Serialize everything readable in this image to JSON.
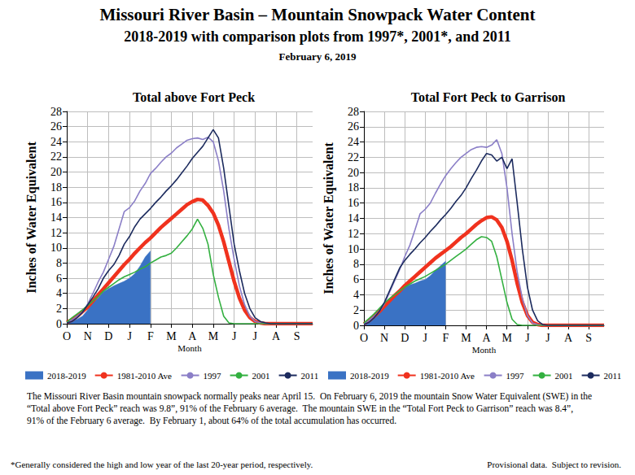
{
  "header": {
    "title": "Missouri River Basin – Mountain Snowpack Water Content",
    "subtitle": "2018-2019 with comparison plots from 1997*, 2001*, and 2011",
    "date": "February 6, 2019"
  },
  "chart_data": [
    {
      "type": "line",
      "title": "Total above Fort Peck",
      "x_label": "Month",
      "y_label": "Inches of Water Equivalent",
      "categories": [
        "O",
        null,
        null,
        null,
        "N",
        null,
        null,
        null,
        "D",
        null,
        null,
        null,
        "J",
        null,
        null,
        null,
        "F",
        null,
        null,
        null,
        "M",
        null,
        null,
        null,
        "A",
        null,
        null,
        null,
        "M",
        null,
        null,
        null,
        "J",
        null,
        null,
        null,
        "J",
        null,
        null,
        null,
        "A",
        null,
        null,
        null,
        "S",
        null,
        null,
        null
      ],
      "ylim": [
        0,
        28
      ],
      "yticks": [
        0,
        2,
        4,
        6,
        8,
        10,
        12,
        14,
        16,
        18,
        20,
        22,
        24,
        26,
        28
      ],
      "grid": true,
      "legend": "bottom",
      "series": [
        {
          "name": "2018-2019",
          "type": "area",
          "color": "#3a72c4",
          "values": [
            0.2,
            0.4,
            0.6,
            1.0,
            1.8,
            2.8,
            3.4,
            4.2,
            4.6,
            5.0,
            5.3,
            5.6,
            6.0,
            6.6,
            7.6,
            8.8,
            9.6,
            null,
            null,
            null,
            null,
            null,
            null,
            null,
            null,
            null,
            null,
            null,
            null,
            null,
            null,
            null,
            null,
            null,
            null,
            null,
            null,
            null,
            null,
            null,
            null,
            null,
            null,
            null,
            null,
            null,
            null,
            null
          ]
        },
        {
          "name": "1981-2010 Ave",
          "type": "line",
          "color": "#f0321e",
          "line_style": "thick",
          "values": [
            0.2,
            0.5,
            1.0,
            1.6,
            2.2,
            3.0,
            3.8,
            4.6,
            5.4,
            6.2,
            7.0,
            7.8,
            8.5,
            9.3,
            10.0,
            10.7,
            11.3,
            12.0,
            12.7,
            13.3,
            13.9,
            14.5,
            15.1,
            15.7,
            16.1,
            16.4,
            16.3,
            15.6,
            14.6,
            13.0,
            10.8,
            8.2,
            5.6,
            3.4,
            1.8,
            0.8,
            0.3,
            0.1,
            0,
            0,
            0,
            0,
            0,
            0,
            0,
            0,
            0,
            0
          ]
        },
        {
          "name": "1997",
          "type": "line",
          "color": "#8b7fc7",
          "line_style": "solid",
          "values": [
            0.2,
            0.5,
            1.0,
            1.5,
            2.6,
            4.0,
            5.5,
            6.8,
            8.5,
            10.2,
            12.5,
            14.8,
            15.3,
            16.2,
            17.5,
            18.5,
            19.8,
            20.5,
            21.3,
            22.0,
            22.5,
            23.2,
            23.7,
            24.2,
            24.4,
            24.5,
            24.3,
            24.6,
            24.0,
            21.5,
            17.5,
            12.5,
            8.5,
            5.0,
            2.5,
            1.0,
            0.3,
            0.1,
            0,
            0,
            0,
            0,
            0,
            0,
            0,
            0,
            0,
            0
          ]
        },
        {
          "name": "2001",
          "type": "line",
          "color": "#33b040",
          "line_style": "solid",
          "values": [
            0.2,
            0.8,
            1.3,
            1.8,
            2.4,
            3.0,
            3.6,
            4.3,
            4.8,
            5.3,
            5.8,
            6.2,
            6.5,
            6.8,
            7.2,
            7.5,
            8.0,
            8.4,
            8.8,
            9.0,
            9.3,
            10.0,
            10.8,
            11.6,
            12.5,
            13.8,
            12.6,
            10.5,
            6.5,
            3.5,
            1.0,
            0.1,
            0,
            0,
            0,
            0,
            0,
            0,
            0,
            0,
            0,
            0,
            0,
            0,
            0,
            0,
            0,
            0
          ]
        },
        {
          "name": "2011",
          "type": "line",
          "color": "#1c2b5e",
          "line_style": "solid",
          "values": [
            0.1,
            0.3,
            0.8,
            1.5,
            2.5,
            3.5,
            4.6,
            6.0,
            7.0,
            7.8,
            9.0,
            10.5,
            11.5,
            12.8,
            13.8,
            14.5,
            15.2,
            16.0,
            16.7,
            17.5,
            18.2,
            19.0,
            19.9,
            20.8,
            21.8,
            22.6,
            23.4,
            24.5,
            25.6,
            24.5,
            20.5,
            15.5,
            10.5,
            7.0,
            4.0,
            2.0,
            0.8,
            0.3,
            0.1,
            0,
            0,
            0,
            0,
            0,
            0,
            0,
            0,
            0
          ]
        }
      ]
    },
    {
      "type": "line",
      "title": "Total Fort Peck to Garrison",
      "x_label": "Month",
      "y_label": "Inches of Water Equivalent",
      "categories": [
        "O",
        null,
        null,
        null,
        "N",
        null,
        null,
        null,
        "D",
        null,
        null,
        null,
        "J",
        null,
        null,
        null,
        "F",
        null,
        null,
        null,
        "M",
        null,
        null,
        null,
        "A",
        null,
        null,
        null,
        "M",
        null,
        null,
        null,
        "J",
        null,
        null,
        null,
        "J",
        null,
        null,
        null,
        "A",
        null,
        null,
        null,
        "S",
        null,
        null,
        null
      ],
      "ylim": [
        0,
        28
      ],
      "yticks": [
        0,
        2,
        4,
        6,
        8,
        10,
        12,
        14,
        16,
        18,
        20,
        22,
        24,
        26,
        28
      ],
      "grid": true,
      "legend": "bottom",
      "series": [
        {
          "name": "2018-2019",
          "type": "area",
          "color": "#3a72c4",
          "values": [
            0.3,
            0.6,
            1.0,
            1.6,
            2.4,
            3.4,
            4.0,
            4.5,
            5.0,
            5.3,
            5.5,
            5.8,
            6.0,
            6.5,
            7.2,
            7.8,
            8.4,
            null,
            null,
            null,
            null,
            null,
            null,
            null,
            null,
            null,
            null,
            null,
            null,
            null,
            null,
            null,
            null,
            null,
            null,
            null,
            null,
            null,
            null,
            null,
            null,
            null,
            null,
            null,
            null,
            null,
            null,
            null
          ]
        },
        {
          "name": "1981-2010 Ave",
          "type": "line",
          "color": "#f0321e",
          "line_style": "thick",
          "values": [
            0.2,
            0.6,
            1.2,
            1.8,
            2.5,
            3.2,
            3.9,
            4.5,
            5.2,
            5.8,
            6.4,
            7.0,
            7.6,
            8.2,
            8.8,
            9.3,
            9.8,
            10.3,
            10.9,
            11.5,
            12.0,
            12.6,
            13.2,
            13.7,
            14.1,
            14.2,
            13.8,
            12.8,
            11.0,
            8.5,
            5.5,
            3.0,
            1.3,
            0.4,
            0.1,
            0,
            0,
            0,
            0,
            0,
            0,
            0,
            0,
            0,
            0,
            0,
            0,
            0
          ]
        },
        {
          "name": "1997",
          "type": "line",
          "color": "#8b7fc7",
          "line_style": "solid",
          "values": [
            0.2,
            0.6,
            1.2,
            1.8,
            2.8,
            4.3,
            5.8,
            7.3,
            9.0,
            10.5,
            12.5,
            14.6,
            15.2,
            16.0,
            17.3,
            18.5,
            19.6,
            20.5,
            21.3,
            22.0,
            22.5,
            23.0,
            23.3,
            23.4,
            23.3,
            23.6,
            24.3,
            22.5,
            18.0,
            12.0,
            7.0,
            3.5,
            1.3,
            0.3,
            0.1,
            0,
            0,
            0,
            0,
            0,
            0,
            0,
            0,
            0,
            0,
            0,
            0,
            0
          ]
        },
        {
          "name": "2001",
          "type": "line",
          "color": "#33b040",
          "line_style": "solid",
          "values": [
            0.3,
            0.9,
            1.5,
            2.2,
            2.9,
            3.5,
            4.0,
            4.5,
            5.0,
            5.4,
            5.8,
            6.1,
            6.4,
            6.8,
            7.2,
            7.6,
            8.0,
            8.5,
            9.0,
            9.5,
            10.0,
            10.6,
            11.2,
            11.6,
            11.5,
            11.0,
            9.0,
            6.0,
            3.0,
            0.8,
            0.1,
            0,
            0,
            0,
            0,
            0,
            0,
            0,
            0,
            0,
            0,
            0,
            0,
            0,
            0,
            0,
            0,
            0
          ]
        },
        {
          "name": "2011",
          "type": "line",
          "color": "#1c2b5e",
          "line_style": "solid",
          "values": [
            0.1,
            0.4,
            1.0,
            1.8,
            3.0,
            4.5,
            6.0,
            7.5,
            8.5,
            9.3,
            10.0,
            10.8,
            11.5,
            12.3,
            13.0,
            13.8,
            14.5,
            15.3,
            16.2,
            17.0,
            18.0,
            19.2,
            20.3,
            21.5,
            22.5,
            22.3,
            21.5,
            22.0,
            20.5,
            21.8,
            16.0,
            10.0,
            5.0,
            2.0,
            0.6,
            0.1,
            0,
            0,
            0,
            0,
            0,
            0,
            0,
            0,
            0,
            0,
            0,
            0
          ]
        }
      ]
    }
  ],
  "footer": {
    "text": "The Missouri River Basin mountain snowpack normally peaks near April 15.  On February 6, 2019 the mountain Snow Water Equivalent (SWE) in the “Total above Fort Peck” reach was 9.8”, 91% of the February 6 average.  The mountain SWE in the “Total Fort Peck to Garrison” reach was 8.4”, 91% of the February 6 average.  By February 1, about 64% of the total accumulation has occurred.",
    "footnote": "*Generally considered the high and low year of the last 20-year period, respectively.",
    "provisional": "Provisional data.  Subject to revision."
  }
}
